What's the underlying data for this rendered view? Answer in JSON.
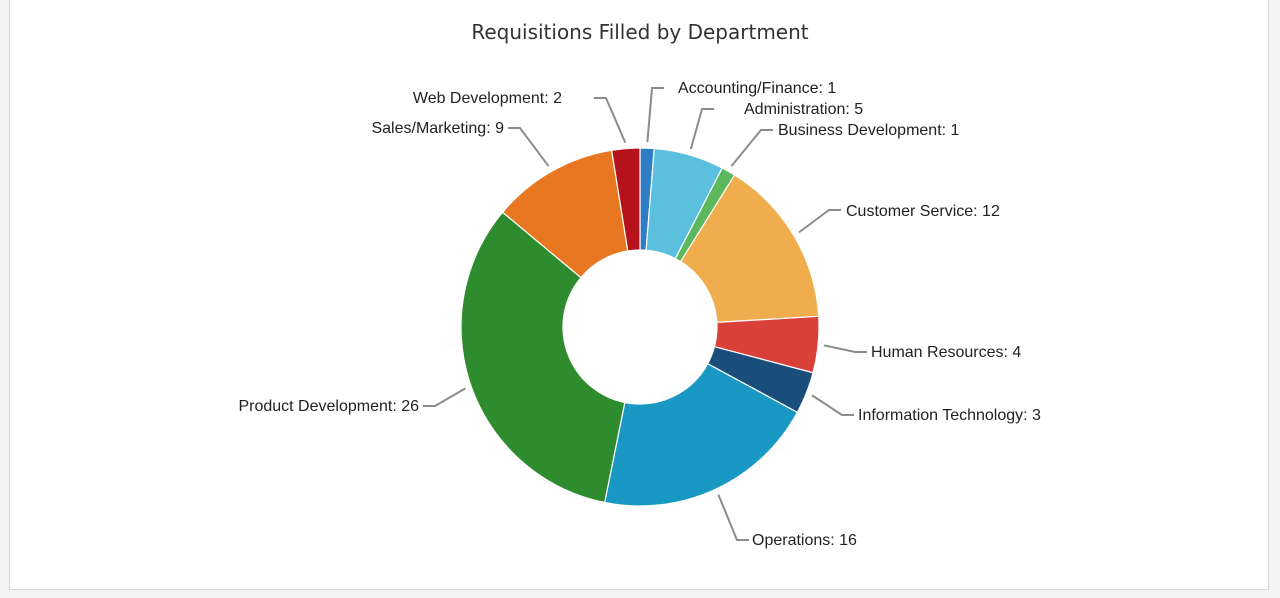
{
  "chart_data": {
    "type": "pie",
    "donut": true,
    "title": "Requisitions Filled by Department",
    "slices": [
      {
        "label": "Accounting/Finance",
        "value": 1,
        "color": "#2f7ec5"
      },
      {
        "label": "Administration",
        "value": 5,
        "color": "#5bc0de"
      },
      {
        "label": "Business Development",
        "value": 1,
        "color": "#5cb85c"
      },
      {
        "label": "Customer Service",
        "value": 12,
        "color": "#f0ad4e"
      },
      {
        "label": "Human Resources",
        "value": 4,
        "color": "#d9403a"
      },
      {
        "label": "Information Technology",
        "value": 3,
        "color": "#1a4e7a"
      },
      {
        "label": "Operations",
        "value": 16,
        "color": "#1a98c4"
      },
      {
        "label": "Product Development",
        "value": 26,
        "color": "#2e8b2e"
      },
      {
        "label": "Sales/Marketing",
        "value": 9,
        "color": "#e87722"
      },
      {
        "label": "Web Development",
        "value": 2,
        "color": "#b5121b"
      }
    ],
    "legend": "none (labels on slices)"
  }
}
